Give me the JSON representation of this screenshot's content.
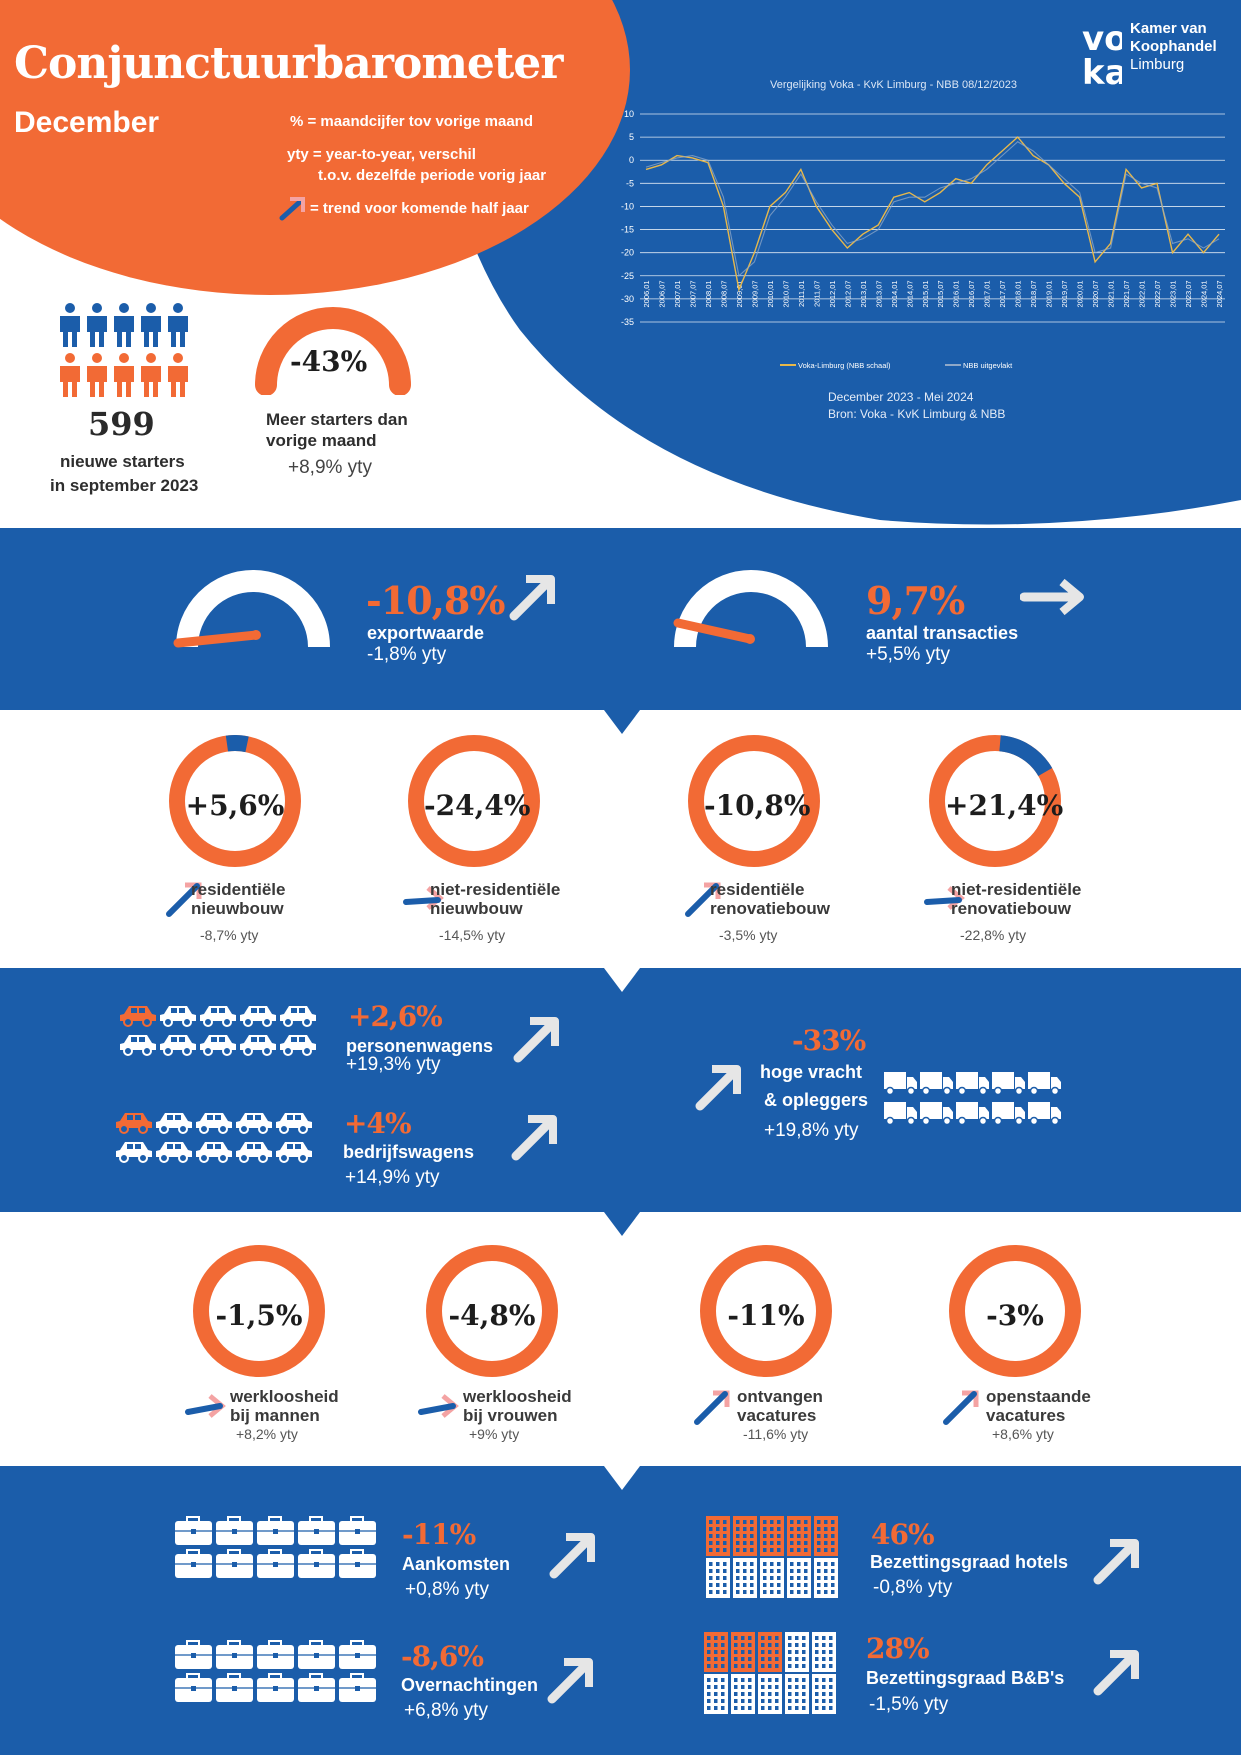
{
  "header": {
    "title": "Conjunctuurbarometer",
    "month": "December",
    "legend_pct": "% = maandcijfer tov vorige maand",
    "legend_yty_1": "yty  = year-to-year,  verschil",
    "legend_yty_2": "t.o.v. dezelfde periode vorig jaar",
    "legend_trend": "= trend voor komende  half jaar"
  },
  "logo": {
    "mark": "voka",
    "line1": "Kamer van",
    "line2": "Koophandel",
    "line3": "Limburg"
  },
  "chart": {
    "title": "Vergelijking  Voka - KvK Limburg - NBB 08/12/2023",
    "caption1": "December 2023 - Mei 2024",
    "caption2": "Bron: Voka - KvK Limburg & NBB",
    "colors": {
      "series1": "#e8b84a",
      "series2": "#8fa8c8",
      "grid": "#ffffff"
    }
  },
  "chart_data": {
    "type": "line",
    "title": "Vergelijking  Voka - KvK Limburg - NBB 08/12/2023",
    "ylim": [
      -35,
      10
    ],
    "yticks": [
      "10",
      "5",
      "0",
      "-5",
      "-10",
      "-15",
      "-20",
      "-25",
      "-30",
      "-35"
    ],
    "x": [
      "2006,01",
      "2006,07",
      "2007,01",
      "2007,07",
      "2008,01",
      "2008,07",
      "2009,01",
      "2009,07",
      "2010,01",
      "2010,07",
      "2011,01",
      "2011,07",
      "2012,01",
      "2012,07",
      "2013,01",
      "2013,07",
      "2014,01",
      "2014,07",
      "2015,01",
      "2015,07",
      "2016,01",
      "2016,07",
      "2017,01",
      "2017,07",
      "2018,01",
      "2018,07",
      "2019,01",
      "2019,07",
      "2020,01",
      "2020,07",
      "2021,01",
      "2021,07",
      "2022,01",
      "2022,07",
      "2023,01",
      "2023,07",
      "2024,01",
      "2024,07"
    ],
    "series": [
      {
        "name": "Voka-Limburg (NBB schaal)",
        "values": [
          -2,
          -1,
          1,
          0.5,
          -0.5,
          -10,
          -28,
          -20,
          -10,
          -7,
          -2,
          -10,
          -15,
          -19,
          -16,
          -14,
          -8,
          -7,
          -9,
          -7,
          -4,
          -5,
          -1,
          2,
          5,
          1,
          -1,
          -5,
          -8,
          -22,
          -18,
          -2,
          -6,
          -5,
          -20,
          -16,
          -20,
          -16
        ]
      },
      {
        "name": "NBB  uitgevlakt",
        "values": [
          -1.5,
          -0.5,
          0.5,
          1,
          0,
          -8,
          -25,
          -22,
          -12,
          -8,
          -3,
          -9,
          -14,
          -18,
          -17,
          -15,
          -9,
          -8,
          -8,
          -6,
          -5,
          -4,
          -2,
          1,
          4,
          2,
          -1,
          -4,
          -7,
          -20,
          -19,
          -3,
          -5,
          -6,
          -18,
          -17,
          -19,
          -17
        ]
      }
    ]
  },
  "starters": {
    "count": "599",
    "label1": "nieuwe starters",
    "label2": "in september 2023",
    "pct": "-43%",
    "desc1": "Meer  starters dan",
    "desc2": "vorige maand",
    "yty": "+8,9% yty"
  },
  "trade": {
    "export": {
      "pct": "-10,8%",
      "label": "exportwaarde",
      "yty": "-1,8% yty"
    },
    "transactions": {
      "pct": "9,7%",
      "label": "aantal transacties",
      "yty": "+5,5% yty"
    }
  },
  "construction": [
    {
      "pct": "+5,6%",
      "label1": "residentiële",
      "label2": "nieuwbouw",
      "yty": "-8,7% yty"
    },
    {
      "pct": "-24,4%",
      "label1": "niet-residentiële",
      "label2": "nieuwbouw",
      "yty": "-14,5% yty"
    },
    {
      "pct": "-10,8%",
      "label1": "residentiële",
      "label2": "renovatiebouw",
      "yty": "-3,5% yty"
    },
    {
      "pct": "+21,4%",
      "label1": "niet-residentiële",
      "label2": "renovatiebouw",
      "yty": "-22,8% yty"
    }
  ],
  "vehicles": {
    "cars": {
      "pct": "+2,6%",
      "label": "personenwagens",
      "yty": "+19,3% yty"
    },
    "vans": {
      "pct": "+4%",
      "label": "bedrijfswagens",
      "yty": "+14,9% yty"
    },
    "trucks": {
      "pct": "-33%",
      "label1": "hoge vracht",
      "label2": "& opleggers",
      "yty": "+19,8% yty"
    }
  },
  "labour": [
    {
      "pct": "-1,5%",
      "label1": "werkloosheid",
      "label2": "bij mannen",
      "yty": "+8,2% yty"
    },
    {
      "pct": "-4,8%",
      "label1": "werkloosheid",
      "label2": "bij vrouwen",
      "yty": "+9% yty"
    },
    {
      "pct": "-11%",
      "label1": "ontvangen",
      "label2": "vacatures",
      "yty": "-11,6% yty"
    },
    {
      "pct": "-3%",
      "label1": "openstaande",
      "label2": "vacatures",
      "yty": "+8,6% yty"
    }
  ],
  "tourism": {
    "arrivals": {
      "pct": "-11%",
      "label": "Aankomsten",
      "yty": "+0,8% yty"
    },
    "nights": {
      "pct": "-8,6%",
      "label": "Overnachtingen",
      "yty": "+6,8% yty"
    },
    "hotels": {
      "pct": "46%",
      "label": "Bezettingsgraad hotels",
      "yty": "-0,8% yty"
    },
    "bnb": {
      "pct": "28%",
      "label": "Bezettingsgraad B&B's",
      "yty": "-1,5% yty"
    }
  },
  "colors": {
    "orange": "#f26a35",
    "blue": "#1b5daa",
    "dark_blue": "#1d5aa6"
  }
}
